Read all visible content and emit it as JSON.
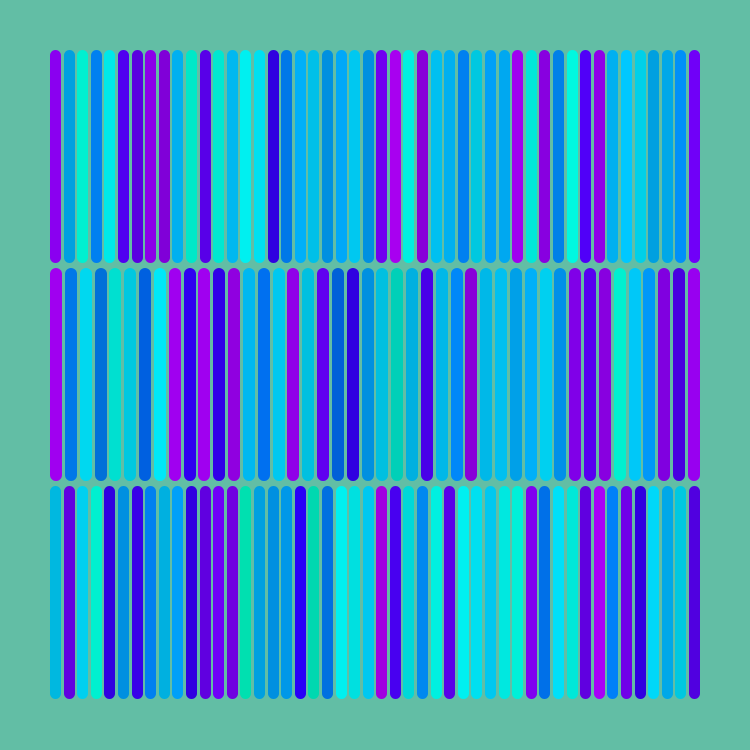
{
  "background": "#62bea5",
  "rows": [
    {
      "colors": [
        "#8a00f0",
        "#00a0e0",
        "#00f0d0",
        "#0080f0",
        "#00e8e8",
        "#5000f0",
        "#5a00e0",
        "#8c00e8",
        "#8000d8",
        "#00b0f0",
        "#00e8c8",
        "#5800e8",
        "#00e8d0",
        "#00b8f0",
        "#00f0f0",
        "#00e0f0",
        "#3000e0",
        "#0078e8",
        "#00b0f8",
        "#00c0e8",
        "#0090e0",
        "#00a8f8",
        "#00c8f0",
        "#0090e0",
        "#7000f0",
        "#a800f0",
        "#00f0e0",
        "#8800d8",
        "#00c0f0",
        "#00b0f0",
        "#0080f0",
        "#00c8e0",
        "#00a0f8",
        "#00a8f0",
        "#a000f0",
        "#00e8d8",
        "#8800e0",
        "#0080e8",
        "#00f8e0",
        "#5000f8",
        "#9000e8",
        "#00b0f0",
        "#00c8ff",
        "#00d0e8",
        "#00a0e0",
        "#00a8e8",
        "#0090f8",
        "#7000f8"
      ]
    },
    {
      "colors": [
        "#a000f0",
        "#0078e8",
        "#00d8f0",
        "#0070d8",
        "#00e0d0",
        "#00c8e0",
        "#0060e0",
        "#00e8f8",
        "#a000f0",
        "#3000f0",
        "#a000f0",
        "#3000e8",
        "#9000e0",
        "#00b8f0",
        "#0070f0",
        "#00c8f0",
        "#9000e8",
        "#00c0e0",
        "#6000f0",
        "#0060d8",
        "#3000e0",
        "#0090e0",
        "#00c0e0",
        "#00d0b8",
        "#00b0e0",
        "#4800e8",
        "#00b8e8",
        "#0088f8",
        "#8800d8",
        "#00b8e8",
        "#00c0f0",
        "#00a0e8",
        "#00b0f8",
        "#00d0f0",
        "#0090e8",
        "#8000e8",
        "#5800f0",
        "#8800e0",
        "#00f0d0",
        "#00c8f8",
        "#0098f8",
        "#8000e0",
        "#4800e0",
        "#9800f0"
      ]
    },
    {
      "colors": [
        "#00b8e0",
        "#6000e0",
        "#00d0f0",
        "#00f0d0",
        "#3000e0",
        "#0090e0",
        "#3800e8",
        "#0080f0",
        "#00b0e0",
        "#00a0f8",
        "#3000e0",
        "#6000e0",
        "#7000f8",
        "#7000e0",
        "#00e0b0",
        "#00a0e0",
        "#0090e0",
        "#0098e8",
        "#2800f8",
        "#00d8b0",
        "#0070e0",
        "#00f0f0",
        "#00e0e0",
        "#00c8f0",
        "#a000e0",
        "#4800f0",
        "#00d8d8",
        "#0088f0",
        "#00f0e0",
        "#5800e8",
        "#00f0f0",
        "#00e0f0",
        "#00c8f0",
        "#00e8e0",
        "#00f0d8",
        "#8000f0",
        "#0070e8",
        "#00e0f8",
        "#00e8d8",
        "#6000e0",
        "#a800f8",
        "#0080f8",
        "#7000e8",
        "#3000e0",
        "#00d8f8",
        "#00a8e8",
        "#00c8e0",
        "#5000e0"
      ]
    }
  ]
}
